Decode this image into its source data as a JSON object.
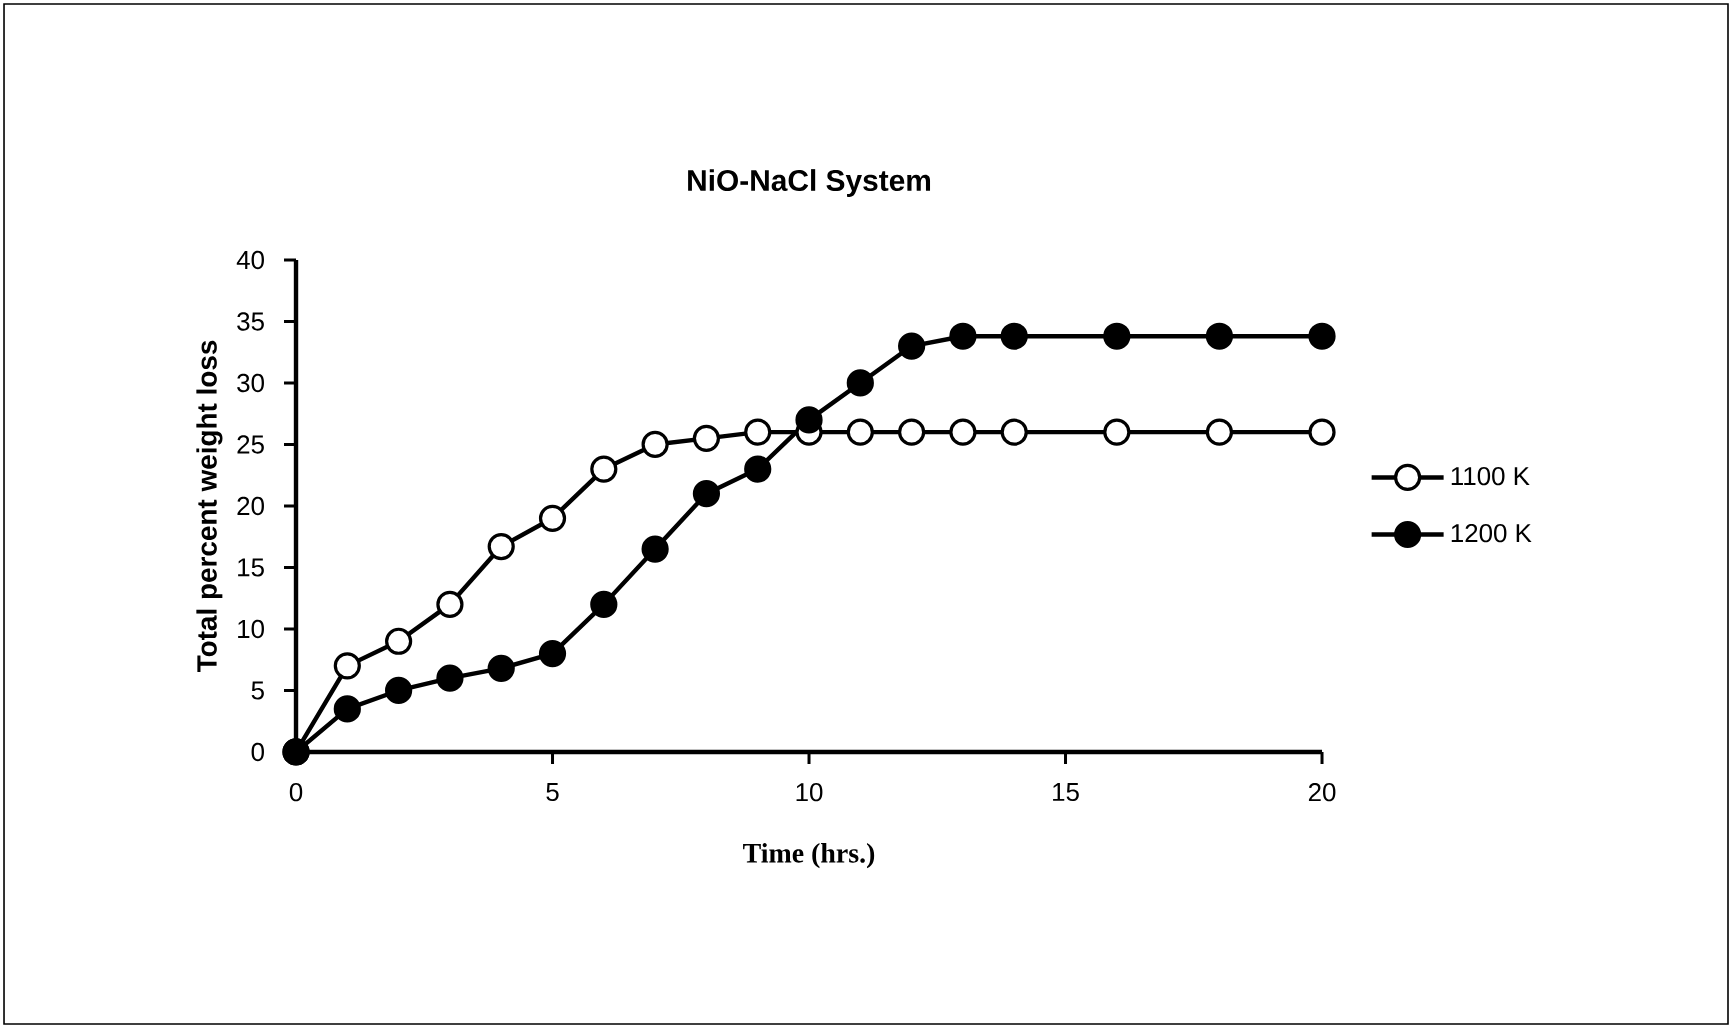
{
  "chart_data": {
    "type": "line",
    "title": "NiO-NaCl System",
    "xlabel": "Time (hrs.)",
    "ylabel": "Total percent weight loss",
    "x": [
      0,
      1,
      2,
      3,
      4,
      5,
      6,
      7,
      8,
      9,
      10,
      11,
      12,
      13,
      14,
      16,
      18,
      20
    ],
    "series": [
      {
        "name": "1100 K",
        "color": "#000000",
        "values": [
          0,
          7,
          9,
          12,
          16.7,
          19,
          23,
          25,
          25.5,
          26,
          26,
          26,
          26,
          26,
          26,
          26,
          26,
          26
        ]
      },
      {
        "name": "1200 K",
        "color": "#000000",
        "values": [
          0,
          3.5,
          5,
          6,
          6.8,
          8,
          12,
          16.5,
          21,
          23,
          27,
          30,
          33,
          33.8,
          33.8,
          33.8,
          33.8,
          33.8
        ]
      }
    ],
    "xlim": [
      0,
      20
    ],
    "xticks": [
      0,
      5,
      10,
      15,
      20
    ],
    "ylim": [
      0,
      40
    ],
    "yticks": [
      0,
      5,
      10,
      15,
      20,
      25,
      30,
      35,
      40
    ],
    "grid": false,
    "legend": "right",
    "marker": "circle",
    "line_style": "solid"
  }
}
